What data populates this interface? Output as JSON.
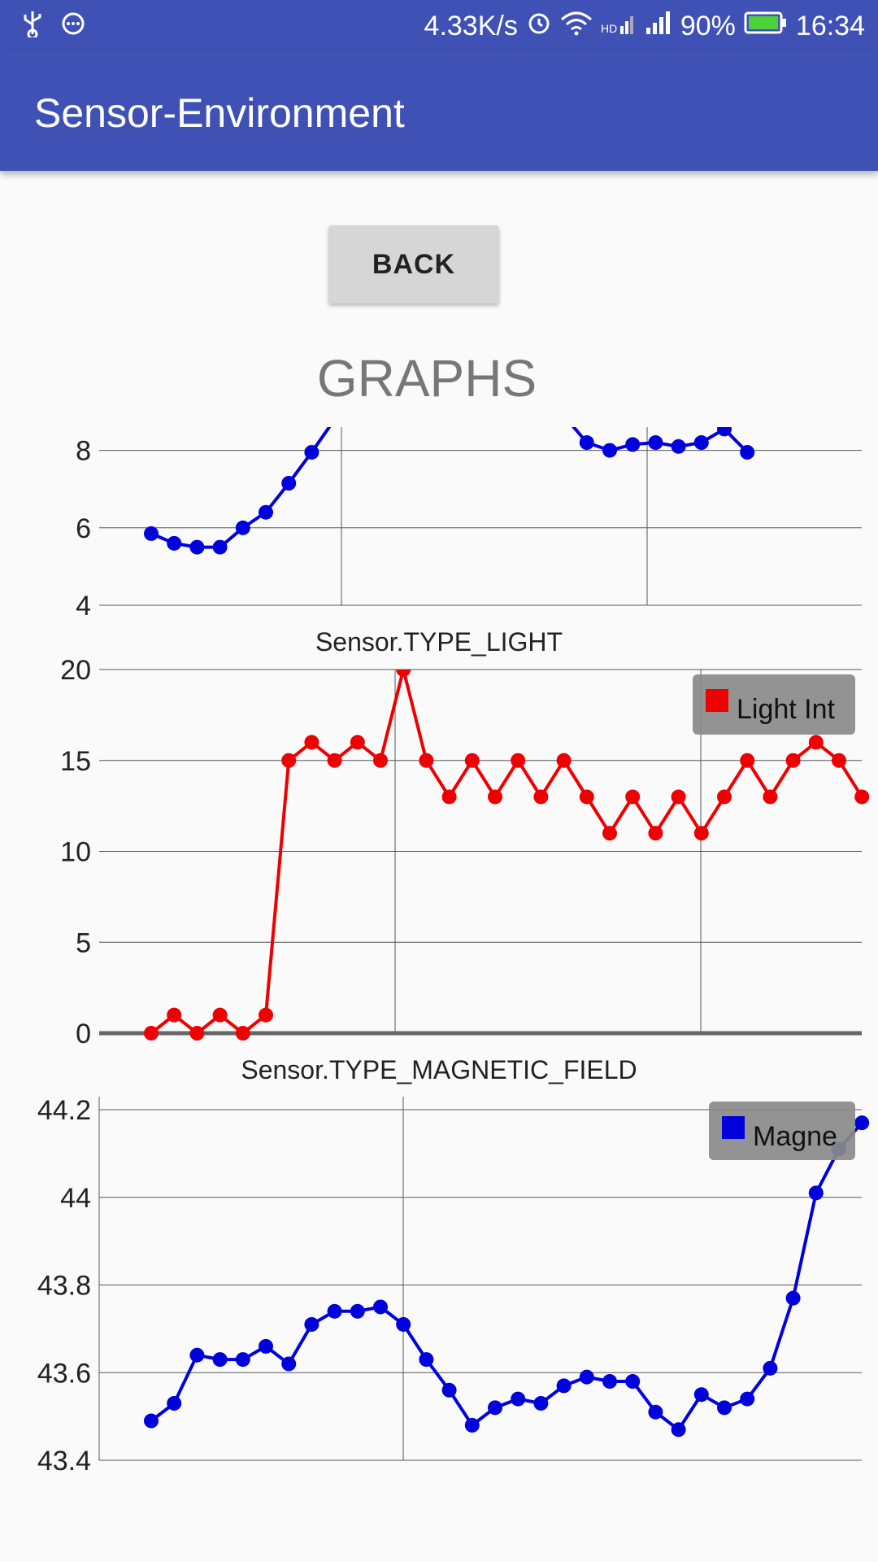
{
  "status_bar": {
    "net_speed": "4.33K/s",
    "battery": "90%",
    "time": "16:34",
    "icons": [
      "usb-icon",
      "message-icon",
      "alarm-icon",
      "wifi-icon",
      "hd-signal-icon",
      "signal-icon",
      "battery-icon"
    ]
  },
  "app_bar": {
    "title": "Sensor-Environment"
  },
  "back_button": {
    "label": "BACK"
  },
  "graphs_title": "GRAPHS",
  "colors": {
    "primary": "#3f51b5",
    "series_blue": "#0000dd",
    "series_red": "#ee0000",
    "legend_bg": "#8a8a8a"
  },
  "chart_data": [
    {
      "type": "line",
      "title": "",
      "yticks": [
        "4",
        "6",
        "8"
      ],
      "ylim": [
        4,
        8.6
      ],
      "series": [
        {
          "name": "",
          "color": "#0000dd",
          "values": [
            5.85,
            5.6,
            5.5,
            5.5,
            6.0,
            6.4,
            7.15,
            7.95,
            8.8,
            null,
            null,
            null,
            null,
            null,
            null,
            null,
            null,
            null,
            8.9,
            8.2,
            8.0,
            8.15,
            8.2,
            8.1,
            8.2,
            8.55,
            7.95
          ]
        }
      ],
      "grid": true
    },
    {
      "type": "line",
      "title": "Sensor.TYPE_LIGHT",
      "yticks": [
        "0",
        "5",
        "10",
        "15",
        "20"
      ],
      "ylim": [
        0,
        20
      ],
      "legend": {
        "label": "Light Int",
        "position": "top-right"
      },
      "series": [
        {
          "name": "Light Int",
          "color": "#ee0000",
          "values": [
            0,
            1,
            0,
            1,
            0,
            1,
            15,
            16,
            15,
            16,
            15,
            20,
            15,
            13,
            15,
            13,
            15,
            13,
            15,
            13,
            11,
            13,
            11,
            13,
            11,
            13,
            15,
            13,
            15,
            16,
            15,
            13
          ]
        }
      ],
      "grid": true
    },
    {
      "type": "line",
      "title": "Sensor.TYPE_MAGNETIC_FIELD",
      "yticks": [
        "43.4",
        "43.6",
        "43.8",
        "44",
        "44.2"
      ],
      "ylim": [
        43.4,
        44.2
      ],
      "legend": {
        "label": "Magne",
        "position": "top-right"
      },
      "series": [
        {
          "name": "Magne",
          "color": "#0000dd",
          "values": [
            43.49,
            43.53,
            43.64,
            43.63,
            43.63,
            43.66,
            43.62,
            43.71,
            43.74,
            43.74,
            43.75,
            43.71,
            43.63,
            43.56,
            43.48,
            43.52,
            43.54,
            43.53,
            43.57,
            43.59,
            43.58,
            43.58,
            43.51,
            43.47,
            43.55,
            43.52,
            43.54,
            43.61,
            43.77,
            44.01,
            44.11,
            44.17
          ]
        }
      ],
      "grid": true
    }
  ]
}
